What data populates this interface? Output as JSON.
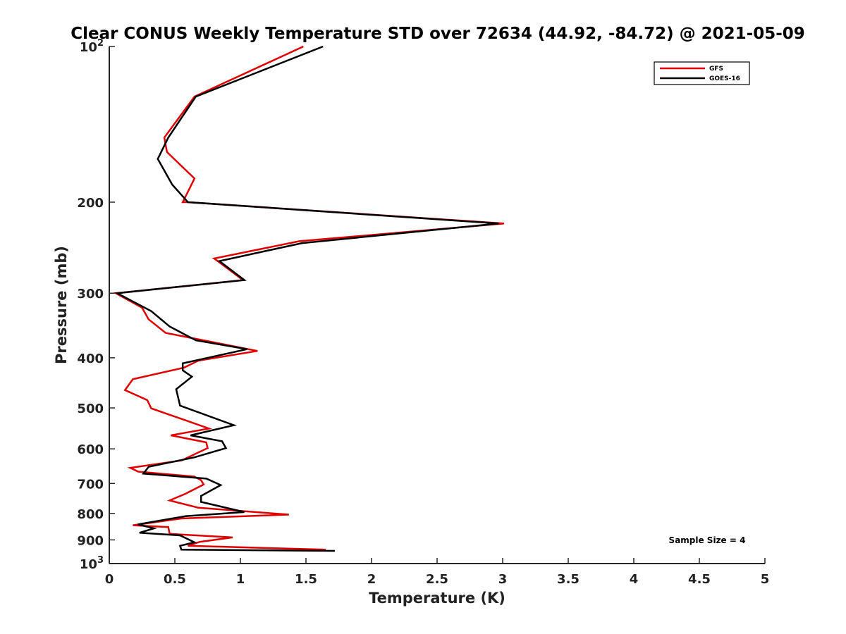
{
  "chart_data": {
    "type": "line",
    "title": "Clear CONUS Weekly Temperature STD over 72634 (44.92, -84.72) @ 2021-05-09",
    "xlabel": "Temperature (K)",
    "ylabel": "Pressure (mb)",
    "xlim": [
      0,
      5
    ],
    "ylim": [
      100,
      1000
    ],
    "y_scale": "log",
    "y_reversed": true,
    "grid": false,
    "legend_position": "top-right",
    "x_ticks": [
      "0",
      "0.5",
      "1",
      "1.5",
      "2",
      "2.5",
      "3",
      "3.5",
      "4",
      "4.5",
      "5"
    ],
    "y_ticks": [
      {
        "value": 100,
        "label": "10",
        "exp": "2"
      },
      {
        "value": 200,
        "label": "200",
        "exp": ""
      },
      {
        "value": 300,
        "label": "300",
        "exp": ""
      },
      {
        "value": 400,
        "label": "400",
        "exp": ""
      },
      {
        "value": 500,
        "label": "500",
        "exp": ""
      },
      {
        "value": 600,
        "label": "600",
        "exp": ""
      },
      {
        "value": 700,
        "label": "700",
        "exp": ""
      },
      {
        "value": 800,
        "label": "800",
        "exp": ""
      },
      {
        "value": 900,
        "label": "900",
        "exp": ""
      },
      {
        "value": 1000,
        "label": "10",
        "exp": "3"
      }
    ],
    "series": [
      {
        "name": "GFS",
        "color": "#e00000",
        "points": [
          [
            1.48,
            100
          ],
          [
            0.65,
            125
          ],
          [
            0.42,
            150
          ],
          [
            0.44,
            160
          ],
          [
            0.65,
            180
          ],
          [
            0.56,
            200
          ],
          [
            0.6,
            200
          ],
          [
            3.01,
            220
          ],
          [
            1.45,
            238
          ],
          [
            0.8,
            257
          ],
          [
            1.02,
            283
          ],
          [
            0.05,
            300
          ],
          [
            0.25,
            320
          ],
          [
            0.3,
            337
          ],
          [
            0.43,
            358
          ],
          [
            1.13,
            388
          ],
          [
            0.68,
            405
          ],
          [
            0.57,
            418
          ],
          [
            0.18,
            440
          ],
          [
            0.12,
            462
          ],
          [
            0.29,
            483
          ],
          [
            0.32,
            501
          ],
          [
            0.55,
            525
          ],
          [
            0.76,
            548
          ],
          [
            0.47,
            565
          ],
          [
            0.74,
            583
          ],
          [
            0.75,
            598
          ],
          [
            0.55,
            632
          ],
          [
            0.16,
            653
          ],
          [
            0.22,
            664
          ],
          [
            0.65,
            679
          ],
          [
            0.7,
            690
          ],
          [
            0.72,
            703
          ],
          [
            0.58,
            733
          ],
          [
            0.46,
            755
          ],
          [
            0.68,
            780
          ],
          [
            1.37,
            804
          ],
          [
            0.55,
            818
          ],
          [
            0.18,
            843
          ],
          [
            0.45,
            850
          ],
          [
            0.46,
            876
          ],
          [
            0.94,
            890
          ],
          [
            0.69,
            908
          ],
          [
            0.6,
            924
          ],
          [
            1.65,
            940
          ]
        ]
      },
      {
        "name": "GOES-16",
        "color": "#000000",
        "points": [
          [
            1.63,
            100
          ],
          [
            0.66,
            125
          ],
          [
            0.45,
            150
          ],
          [
            0.37,
            165
          ],
          [
            0.48,
            185
          ],
          [
            0.6,
            200
          ],
          [
            2.97,
            220
          ],
          [
            1.47,
            240
          ],
          [
            0.84,
            260
          ],
          [
            1.03,
            283
          ],
          [
            0.06,
            300
          ],
          [
            0.32,
            325
          ],
          [
            0.46,
            348
          ],
          [
            0.66,
            370
          ],
          [
            1.05,
            385
          ],
          [
            0.56,
            410
          ],
          [
            0.56,
            423
          ],
          [
            0.63,
            435
          ],
          [
            0.51,
            460
          ],
          [
            0.54,
            495
          ],
          [
            0.95,
            540
          ],
          [
            0.62,
            565
          ],
          [
            0.86,
            580
          ],
          [
            0.89,
            598
          ],
          [
            0.65,
            623
          ],
          [
            0.3,
            650
          ],
          [
            0.26,
            670
          ],
          [
            0.74,
            685
          ],
          [
            0.85,
            705
          ],
          [
            0.7,
            740
          ],
          [
            0.7,
            760
          ],
          [
            1.03,
            795
          ],
          [
            0.58,
            810
          ],
          [
            0.22,
            840
          ],
          [
            0.34,
            855
          ],
          [
            0.23,
            872
          ],
          [
            0.54,
            882
          ],
          [
            0.65,
            910
          ],
          [
            0.54,
            924
          ],
          [
            0.55,
            940
          ],
          [
            1.72,
            945
          ]
        ]
      }
    ],
    "annotation": "Sample Size = 4"
  }
}
